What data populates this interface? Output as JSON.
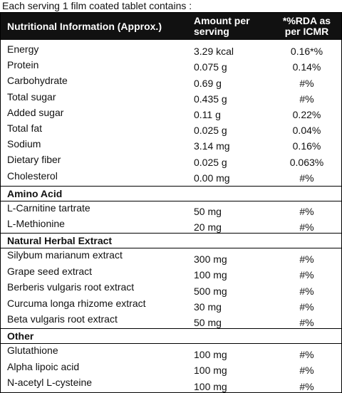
{
  "intro": "Each serving 1 film coated tablet contains :",
  "header": {
    "col1": "Nutritional Information (Approx.)",
    "col2_line1": "Amount per",
    "col2_line2": "serving",
    "col3_line1": "*%RDA as",
    "col3_line2": "per ICMR"
  },
  "nutrients": [
    {
      "name": "Energy",
      "amount": "3.29 kcal",
      "rda": "0.16*%"
    },
    {
      "name": "Protein",
      "amount": "0.075 g",
      "rda": "0.14%"
    },
    {
      "name": "Carbohydrate",
      "amount": "0.69 g",
      "rda": "#%"
    },
    {
      "name": "Total sugar",
      "amount": "0.435 g",
      "rda": "#%"
    },
    {
      "name": "Added sugar",
      "amount": "0.11 g",
      "rda": "0.22%"
    },
    {
      "name": "Total fat",
      "amount": "0.025 g",
      "rda": "0.04%"
    },
    {
      "name": "Sodium",
      "amount": "3.14 mg",
      "rda": "0.16%"
    },
    {
      "name": "Dietary fiber",
      "amount": "0.025 g",
      "rda": "0.063%"
    },
    {
      "name": "Cholesterol",
      "amount": "0.00 mg",
      "rda": "#%"
    }
  ],
  "sections": [
    {
      "title": "Amino Acid",
      "items": [
        {
          "name": "L-Carnitine tartrate",
          "amount": "50 mg",
          "rda": "#%"
        },
        {
          "name": "L-Methionine",
          "amount": "20 mg",
          "rda": "#%"
        }
      ]
    },
    {
      "title": "Natural Herbal Extract",
      "items": [
        {
          "name": "Silybum marianum extract",
          "amount": "300 mg",
          "rda": "#%"
        },
        {
          "name": "Grape seed extract",
          "amount": "100 mg",
          "rda": "#%"
        },
        {
          "name": "Berberis vulgaris root extract",
          "amount": "500 mg",
          "rda": "#%"
        },
        {
          "name": "Curcuma longa rhizome extract",
          "amount": "30 mg",
          "rda": "#%"
        },
        {
          "name": "Beta vulgaris root extract",
          "amount": "50 mg",
          "rda": "#%"
        }
      ]
    },
    {
      "title": "Other",
      "items": [
        {
          "name": "Glutathione",
          "amount": "100 mg",
          "rda": "#%"
        },
        {
          "name": "Alpha lipoic acid",
          "amount": "100 mg",
          "rda": "#%"
        },
        {
          "name": "N-acetyl L-cysteine",
          "amount": "100 mg",
          "rda": "#%"
        }
      ]
    }
  ]
}
